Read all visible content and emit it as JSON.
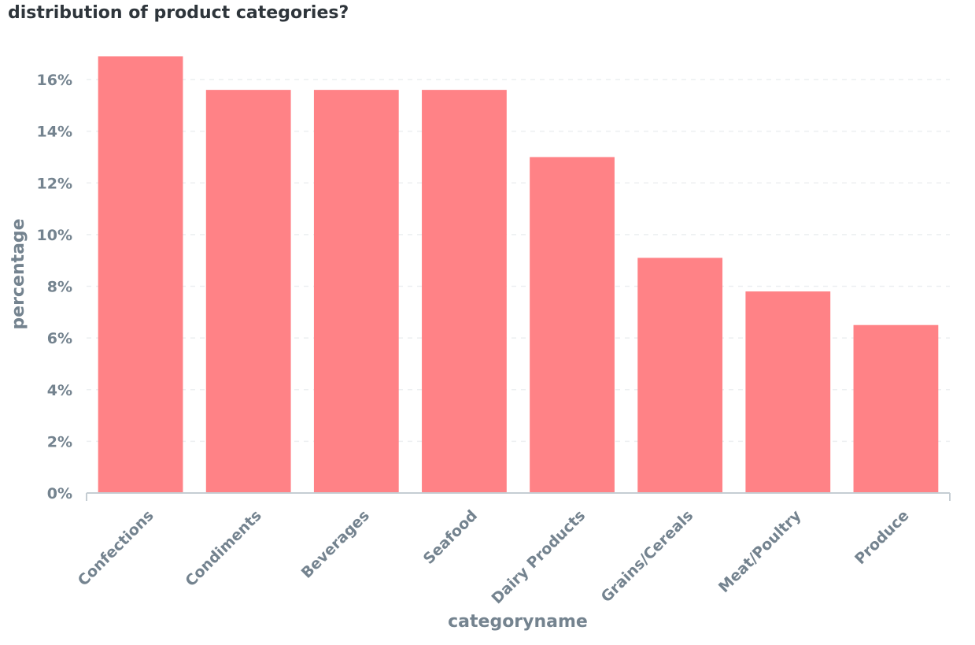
{
  "title": "distribution of product categories?",
  "chart_data": {
    "type": "bar",
    "categories": [
      "Confections",
      "Condiments",
      "Beverages",
      "Seafood",
      "Dairy Products",
      "Grains/Cereals",
      "Meat/Poultry",
      "Produce"
    ],
    "values": [
      16.9,
      15.6,
      15.6,
      15.6,
      13.0,
      9.1,
      7.8,
      6.5
    ],
    "xlabel": "categoryname",
    "ylabel": "percentage",
    "ylim": [
      0,
      16
    ],
    "yticks": [
      "0%",
      "2%",
      "4%",
      "6%",
      "8%",
      "10%",
      "12%",
      "14%",
      "16%"
    ],
    "bar_color": "#ff8286",
    "grid": true
  }
}
